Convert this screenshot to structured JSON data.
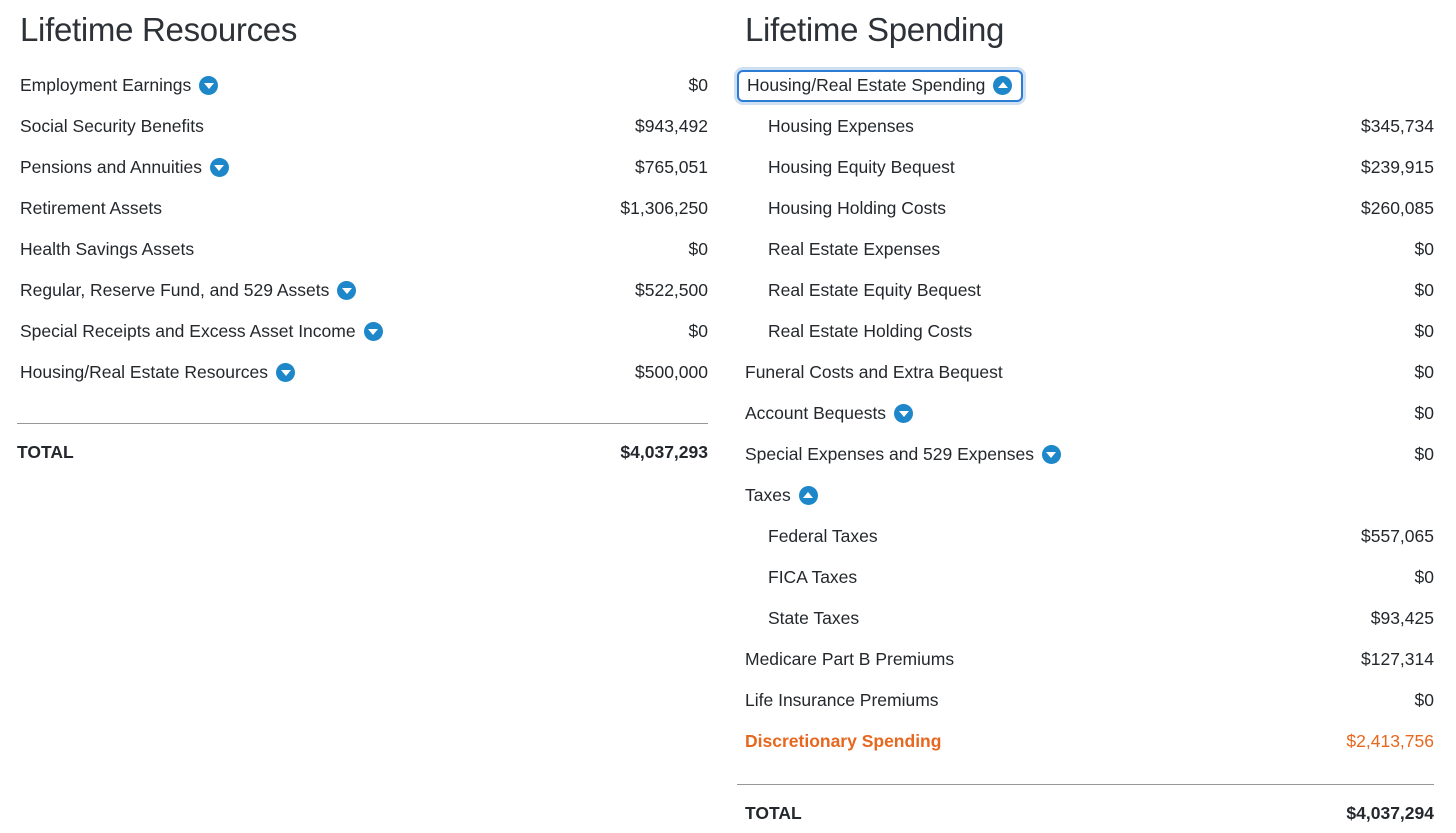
{
  "left_panel": {
    "title": "Lifetime Resources",
    "rows": [
      {
        "label": "Employment Earnings",
        "value": "$0",
        "icon": "chevron-down-circle-icon",
        "state": "collapsed"
      },
      {
        "label": "Social Security Benefits",
        "value": "$943,492"
      },
      {
        "label": "Pensions and Annuities",
        "value": "$765,051",
        "icon": "chevron-down-circle-icon",
        "state": "collapsed"
      },
      {
        "label": "Retirement Assets",
        "value": "$1,306,250"
      },
      {
        "label": "Health Savings Assets",
        "value": "$0"
      },
      {
        "label": "Regular, Reserve Fund, and 529 Assets",
        "value": "$522,500",
        "icon": "chevron-down-circle-icon",
        "state": "collapsed"
      },
      {
        "label": "Special Receipts and Excess Asset Income",
        "value": "$0",
        "icon": "chevron-down-circle-icon",
        "state": "collapsed"
      },
      {
        "label": "Housing/Real Estate Resources",
        "value": "$500,000",
        "icon": "chevron-down-circle-icon",
        "state": "collapsed"
      }
    ],
    "total_label": "TOTAL",
    "total_value": "$4,037,293"
  },
  "right_panel": {
    "title": "Lifetime Spending",
    "rows": [
      {
        "label": "Housing/Real Estate Spending",
        "value": "",
        "icon": "chevron-up-circle-icon",
        "state": "expanded",
        "focused": true
      },
      {
        "label": "Housing Expenses",
        "value": "$345,734",
        "indent": 1
      },
      {
        "label": "Housing Equity Bequest",
        "value": "$239,915",
        "indent": 1
      },
      {
        "label": "Housing Holding Costs",
        "value": "$260,085",
        "indent": 1
      },
      {
        "label": "Real Estate Expenses",
        "value": "$0",
        "indent": 1
      },
      {
        "label": "Real Estate Equity Bequest",
        "value": "$0",
        "indent": 1
      },
      {
        "label": "Real Estate Holding Costs",
        "value": "$0",
        "indent": 1
      },
      {
        "label": "Funeral Costs and Extra Bequest",
        "value": "$0"
      },
      {
        "label": "Account Bequests",
        "value": "$0",
        "icon": "chevron-down-circle-icon",
        "state": "collapsed"
      },
      {
        "label": "Special Expenses and 529 Expenses",
        "value": "$0",
        "icon": "chevron-down-circle-icon",
        "state": "collapsed"
      },
      {
        "label": "Taxes",
        "value": "",
        "icon": "chevron-up-circle-icon",
        "state": "expanded"
      },
      {
        "label": "Federal Taxes",
        "value": "$557,065",
        "indent": 1
      },
      {
        "label": "FICA Taxes",
        "value": "$0",
        "indent": 1
      },
      {
        "label": "State Taxes",
        "value": "$93,425",
        "indent": 1
      },
      {
        "label": "Medicare Part B Premiums",
        "value": "$127,314"
      },
      {
        "label": "Life Insurance Premiums",
        "value": "$0"
      },
      {
        "label": "Discretionary Spending",
        "value": "$2,413,756",
        "highlight": "orange"
      }
    ],
    "total_label": "TOTAL",
    "total_value": "$4,037,294"
  },
  "colors": {
    "accent_blue": "#1d87c9",
    "focus_border_blue": "#2b7cd5",
    "focus_glow_blue": "#cfe0f2",
    "highlight_orange": "#e8671e",
    "text": "#24282c",
    "divider_gray": "#979797"
  }
}
